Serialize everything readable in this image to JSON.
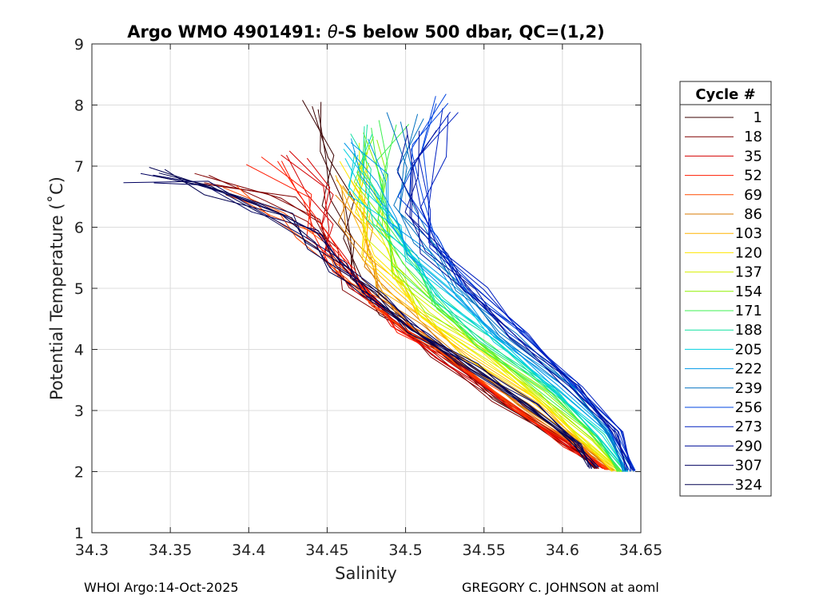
{
  "chart_data": {
    "type": "line",
    "title_prefix": "Argo WMO 4901491: ",
    "title_theta": "θ",
    "title_suffix": "-S below 500 dbar,  QC=(1,2)",
    "xlabel": "Salinity",
    "ylabel": "Potential Temperature (˚C)",
    "xlim": [
      34.3,
      34.65
    ],
    "ylim": [
      1,
      9
    ],
    "xticks": [
      "34.3",
      "34.35",
      "34.4",
      "34.45",
      "34.5",
      "34.55",
      "34.6",
      "34.65"
    ],
    "yticks": [
      "1",
      "2",
      "3",
      "4",
      "5",
      "6",
      "7",
      "8",
      "9"
    ],
    "grid": true,
    "legend": {
      "title": "Cycle #",
      "position": "right",
      "entries": [
        {
          "label": "1",
          "color": "#3a0000"
        },
        {
          "label": "18",
          "color": "#800000"
        },
        {
          "label": "35",
          "color": "#d40000"
        },
        {
          "label": "52",
          "color": "#ff1a00"
        },
        {
          "label": "69",
          "color": "#ff4a00"
        },
        {
          "label": "86",
          "color": "#d77a00"
        },
        {
          "label": "103",
          "color": "#ffb400"
        },
        {
          "label": "120",
          "color": "#ffe600"
        },
        {
          "label": "137",
          "color": "#d8f000"
        },
        {
          "label": "154",
          "color": "#8ff000"
        },
        {
          "label": "171",
          "color": "#3cf050"
        },
        {
          "label": "188",
          "color": "#10e0a0"
        },
        {
          "label": "205",
          "color": "#00d0e0"
        },
        {
          "label": "222",
          "color": "#0098e8"
        },
        {
          "label": "239",
          "color": "#0070c0"
        },
        {
          "label": "256",
          "color": "#0044e0"
        },
        {
          "label": "273",
          "color": "#0020c0"
        },
        {
          "label": "290",
          "color": "#00109a"
        },
        {
          "label": "307",
          "color": "#000060"
        },
        {
          "label": "324",
          "color": "#000050"
        }
      ]
    },
    "series_description": "Representative theta-S curves per cycle group (deep end near S≈34.62–34.645, θ≈2.0°C; shallow end near S≈34.33–34.53, θ≈6.5–8.1°C)",
    "series": [
      {
        "name": "1",
        "color": "#3a0000",
        "points": [
          [
            34.438,
            8.0
          ],
          [
            34.452,
            7.2
          ],
          [
            34.457,
            6.4
          ],
          [
            34.462,
            5.8
          ],
          [
            34.47,
            5.2
          ],
          [
            34.49,
            4.6
          ],
          [
            34.52,
            4.0
          ],
          [
            34.56,
            3.2
          ],
          [
            34.6,
            2.5
          ],
          [
            34.622,
            2.05
          ]
        ]
      },
      {
        "name": "18",
        "color": "#800000",
        "points": [
          [
            34.37,
            6.8
          ],
          [
            34.42,
            6.5
          ],
          [
            34.44,
            6.1
          ],
          [
            34.455,
            5.6
          ],
          [
            34.468,
            5.0
          ],
          [
            34.49,
            4.5
          ],
          [
            34.52,
            3.9
          ],
          [
            34.56,
            3.15
          ],
          [
            34.6,
            2.5
          ],
          [
            34.624,
            2.05
          ]
        ]
      },
      {
        "name": "35",
        "color": "#d40000",
        "points": [
          [
            34.43,
            7.2
          ],
          [
            34.445,
            6.6
          ],
          [
            34.45,
            6.0
          ],
          [
            34.455,
            5.5
          ],
          [
            34.47,
            5.0
          ],
          [
            34.495,
            4.4
          ],
          [
            34.525,
            3.85
          ],
          [
            34.565,
            3.1
          ],
          [
            34.603,
            2.45
          ],
          [
            34.626,
            2.05
          ]
        ]
      },
      {
        "name": "52",
        "color": "#ff1a00",
        "points": [
          [
            34.41,
            7.1
          ],
          [
            34.435,
            6.5
          ],
          [
            34.445,
            5.9
          ],
          [
            34.46,
            5.3
          ],
          [
            34.48,
            4.8
          ],
          [
            34.5,
            4.3
          ],
          [
            34.53,
            3.8
          ],
          [
            34.57,
            3.05
          ],
          [
            34.605,
            2.4
          ],
          [
            34.628,
            2.03
          ]
        ]
      },
      {
        "name": "69",
        "color": "#ff4a00",
        "points": [
          [
            34.385,
            6.6
          ],
          [
            34.42,
            6.2
          ],
          [
            34.44,
            5.8
          ],
          [
            34.46,
            5.2
          ],
          [
            34.485,
            4.7
          ],
          [
            34.505,
            4.25
          ],
          [
            34.535,
            3.75
          ],
          [
            34.575,
            3.0
          ],
          [
            34.61,
            2.4
          ],
          [
            34.63,
            2.03
          ]
        ]
      },
      {
        "name": "86",
        "color": "#d77a00",
        "points": [
          [
            34.462,
            6.6
          ],
          [
            34.468,
            6.0
          ],
          [
            34.475,
            5.4
          ],
          [
            34.488,
            4.9
          ],
          [
            34.505,
            4.4
          ],
          [
            34.535,
            3.85
          ],
          [
            34.575,
            3.1
          ],
          [
            34.61,
            2.45
          ],
          [
            34.632,
            2.02
          ]
        ]
      },
      {
        "name": "103",
        "color": "#ffb400",
        "points": [
          [
            34.465,
            6.8
          ],
          [
            34.47,
            6.2
          ],
          [
            34.478,
            5.5
          ],
          [
            34.49,
            5.0
          ],
          [
            34.51,
            4.5
          ],
          [
            34.54,
            3.9
          ],
          [
            34.58,
            3.15
          ],
          [
            34.613,
            2.45
          ],
          [
            34.634,
            2.01
          ]
        ]
      },
      {
        "name": "120",
        "color": "#ffe600",
        "points": [
          [
            34.467,
            7.0
          ],
          [
            34.472,
            6.3
          ],
          [
            34.48,
            5.6
          ],
          [
            34.492,
            5.1
          ],
          [
            34.512,
            4.55
          ],
          [
            34.542,
            3.95
          ],
          [
            34.582,
            3.2
          ],
          [
            34.615,
            2.5
          ],
          [
            34.635,
            2.0
          ]
        ]
      },
      {
        "name": "137",
        "color": "#d8f000",
        "points": [
          [
            34.47,
            7.3
          ],
          [
            34.475,
            6.5
          ],
          [
            34.483,
            5.8
          ],
          [
            34.495,
            5.2
          ],
          [
            34.515,
            4.6
          ],
          [
            34.545,
            4.0
          ],
          [
            34.585,
            3.25
          ],
          [
            34.617,
            2.5
          ],
          [
            34.636,
            2.0
          ]
        ]
      },
      {
        "name": "154",
        "color": "#8ff000",
        "points": [
          [
            34.48,
            7.5
          ],
          [
            34.478,
            6.8
          ],
          [
            34.485,
            6.0
          ],
          [
            34.498,
            5.3
          ],
          [
            34.518,
            4.65
          ],
          [
            34.548,
            4.05
          ],
          [
            34.588,
            3.3
          ],
          [
            34.62,
            2.55
          ],
          [
            34.637,
            2.0
          ]
        ]
      },
      {
        "name": "171",
        "color": "#3cf050",
        "points": [
          [
            34.49,
            7.7
          ],
          [
            34.482,
            7.0
          ],
          [
            34.488,
            6.2
          ],
          [
            34.5,
            5.4
          ],
          [
            34.52,
            4.7
          ],
          [
            34.55,
            4.08
          ],
          [
            34.59,
            3.3
          ],
          [
            34.622,
            2.55
          ],
          [
            34.638,
            2.0
          ]
        ]
      },
      {
        "name": "188",
        "color": "#10e0a0",
        "points": [
          [
            34.47,
            7.6
          ],
          [
            34.475,
            6.9
          ],
          [
            34.485,
            6.1
          ],
          [
            34.502,
            5.5
          ],
          [
            34.523,
            4.8
          ],
          [
            34.553,
            4.12
          ],
          [
            34.593,
            3.35
          ],
          [
            34.624,
            2.6
          ],
          [
            34.639,
            2.0
          ]
        ]
      },
      {
        "name": "205",
        "color": "#00d0e0",
        "points": [
          [
            34.465,
            7.2
          ],
          [
            34.472,
            6.6
          ],
          [
            34.49,
            6.0
          ],
          [
            34.505,
            5.5
          ],
          [
            34.527,
            4.85
          ],
          [
            34.557,
            4.15
          ],
          [
            34.596,
            3.35
          ],
          [
            34.626,
            2.6
          ],
          [
            34.64,
            2.0
          ]
        ]
      },
      {
        "name": "222",
        "color": "#0098e8",
        "points": [
          [
            34.47,
            7.4
          ],
          [
            34.48,
            6.8
          ],
          [
            34.492,
            6.1
          ],
          [
            34.508,
            5.55
          ],
          [
            34.53,
            4.9
          ],
          [
            34.56,
            4.2
          ],
          [
            34.6,
            3.4
          ],
          [
            34.628,
            2.65
          ],
          [
            34.641,
            2.0
          ]
        ]
      },
      {
        "name": "239",
        "color": "#0070c0",
        "points": [
          [
            34.5,
            7.8
          ],
          [
            34.498,
            7.0
          ],
          [
            34.5,
            6.3
          ],
          [
            34.512,
            5.7
          ],
          [
            34.535,
            5.0
          ],
          [
            34.565,
            4.25
          ],
          [
            34.603,
            3.4
          ],
          [
            34.63,
            2.65
          ],
          [
            34.642,
            2.0
          ]
        ]
      },
      {
        "name": "256",
        "color": "#0044e0",
        "points": [
          [
            34.52,
            8.1
          ],
          [
            34.51,
            7.3
          ],
          [
            34.505,
            6.5
          ],
          [
            34.518,
            5.8
          ],
          [
            34.54,
            5.05
          ],
          [
            34.57,
            4.3
          ],
          [
            34.607,
            3.45
          ],
          [
            34.633,
            2.7
          ],
          [
            34.644,
            2.02
          ]
        ]
      },
      {
        "name": "273",
        "color": "#0020c0",
        "points": [
          [
            34.53,
            7.9
          ],
          [
            34.515,
            7.1
          ],
          [
            34.51,
            6.3
          ],
          [
            34.52,
            5.7
          ],
          [
            34.545,
            5.0
          ],
          [
            34.575,
            4.25
          ],
          [
            34.61,
            3.4
          ],
          [
            34.635,
            2.65
          ],
          [
            34.645,
            2.01
          ]
        ]
      },
      {
        "name": "290",
        "color": "#00109a",
        "points": [
          [
            34.51,
            7.6
          ],
          [
            34.5,
            6.9
          ],
          [
            34.505,
            6.2
          ],
          [
            34.518,
            5.6
          ],
          [
            34.54,
            4.95
          ],
          [
            34.57,
            4.2
          ],
          [
            34.606,
            3.4
          ],
          [
            34.633,
            2.65
          ],
          [
            34.643,
            2.02
          ]
        ]
      },
      {
        "name": "307",
        "color": "#000060",
        "points": [
          [
            34.33,
            6.8
          ],
          [
            34.37,
            6.7
          ],
          [
            34.41,
            6.3
          ],
          [
            34.44,
            5.9
          ],
          [
            34.46,
            5.4
          ],
          [
            34.48,
            4.9
          ],
          [
            34.51,
            4.25
          ],
          [
            34.545,
            3.7
          ],
          [
            34.58,
            3.1
          ],
          [
            34.61,
            2.45
          ],
          [
            34.62,
            2.05
          ]
        ]
      },
      {
        "name": "324",
        "color": "#000050",
        "points": [
          [
            34.34,
            6.9
          ],
          [
            34.38,
            6.6
          ],
          [
            34.42,
            6.2
          ],
          [
            34.44,
            5.7
          ],
          [
            34.458,
            5.3
          ],
          [
            34.475,
            4.9
          ],
          [
            34.505,
            4.3
          ],
          [
            34.54,
            3.75
          ],
          [
            34.575,
            3.1
          ],
          [
            34.607,
            2.5
          ],
          [
            34.62,
            2.07
          ]
        ]
      }
    ]
  },
  "footer": {
    "left": "WHOI Argo:14-Oct-2025",
    "right": "GREGORY C. JOHNSON at aoml"
  }
}
